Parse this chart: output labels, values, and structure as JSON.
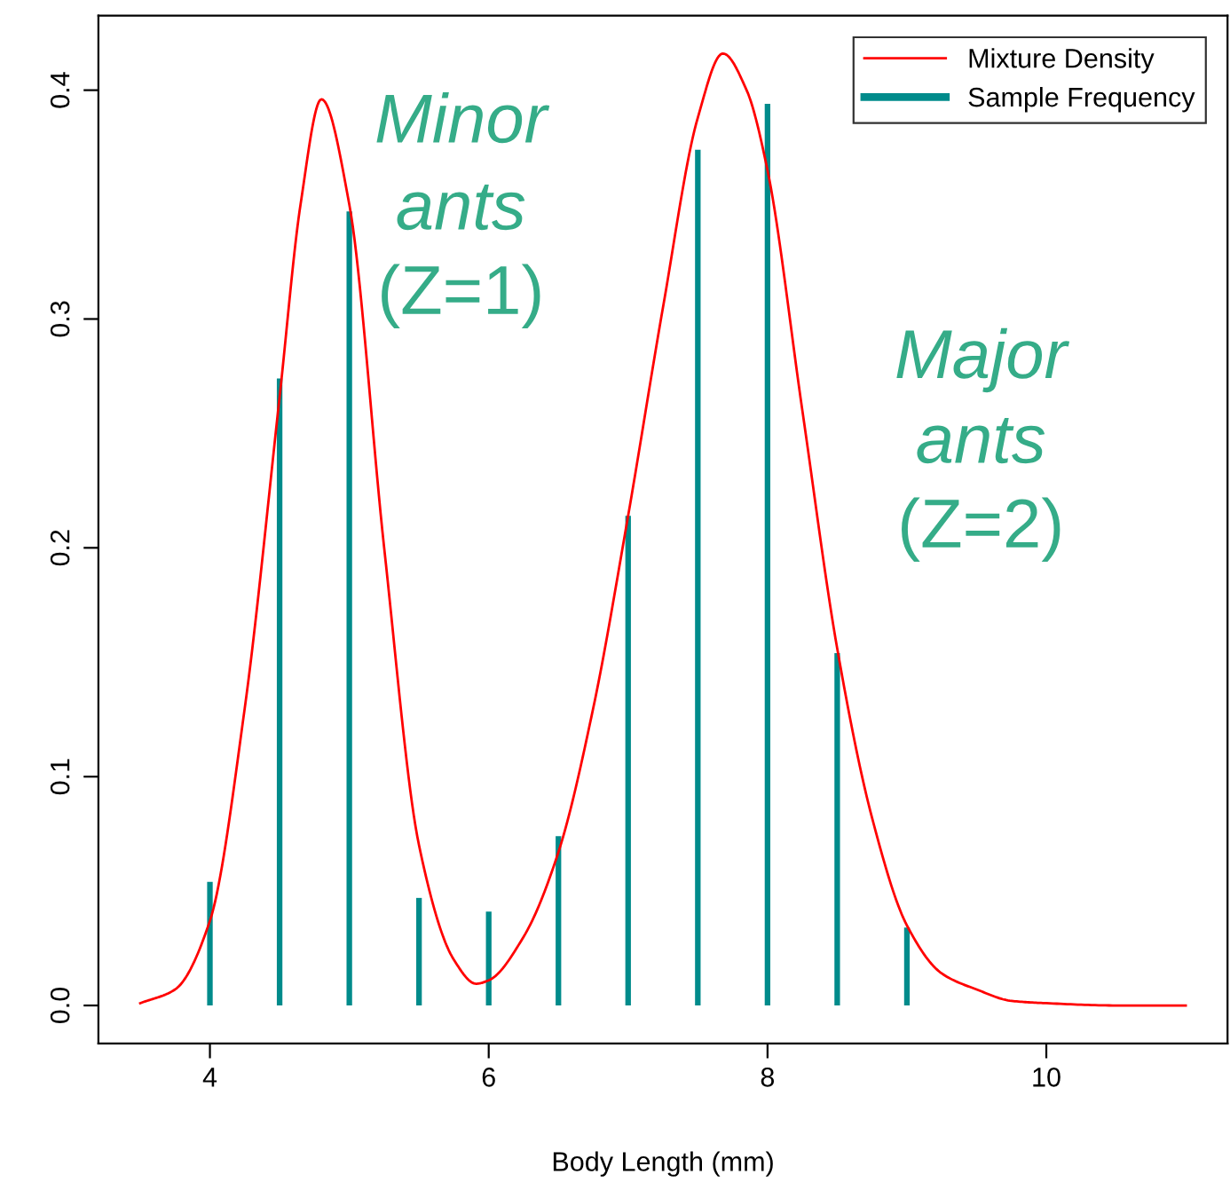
{
  "chart_data": {
    "type": "line",
    "xlabel": "Body Length (mm)",
    "annotations": [
      "Minor\nants\n(Z=1)",
      "Major\nants\n(Z=2)"
    ],
    "series": [
      {
        "name": "Mixture Density",
        "color": "#ff0000",
        "x": [
          3.5,
          3.75,
          4,
          4.25,
          4.5,
          4.65,
          4.8,
          5.0,
          5.25,
          5.5,
          5.75,
          5.91,
          6.0,
          6.25,
          6.5,
          6.75,
          7,
          7.25,
          7.5,
          7.68,
          7.85,
          8,
          8.25,
          8.5,
          8.75,
          9,
          9.25,
          9.5,
          9.75,
          10,
          10.5,
          11
        ],
        "values": [
          0.001,
          0.007,
          0.037,
          0.13,
          0.266,
          0.35,
          0.396,
          0.35,
          0.2,
          0.07,
          0.02,
          0.0095,
          0.011,
          0.03,
          0.067,
          0.13,
          0.214,
          0.305,
          0.388,
          0.416,
          0.4,
          0.365,
          0.26,
          0.156,
          0.082,
          0.035,
          0.014,
          0.007,
          0.002,
          0.001,
          0,
          0
        ]
      },
      {
        "name": "Sample Frequency",
        "type": "bar",
        "color": "#008b8b",
        "x": [
          4,
          4.5,
          5,
          5.5,
          6,
          6.5,
          7,
          7.5,
          8,
          8.5,
          9
        ],
        "values": [
          0.054,
          0.274,
          0.347,
          0.047,
          0.041,
          0.074,
          0.214,
          0.374,
          0.394,
          0.154,
          0.034
        ]
      }
    ],
    "xlim": [
      3.2,
      11.3
    ],
    "xticks": [
      4,
      6,
      8,
      10
    ],
    "ylim": [
      -0.0166,
      0.4326
    ],
    "yticks": [
      {
        "value": 0,
        "label": "0.0"
      },
      {
        "value": 0.1,
        "label": "0.1"
      },
      {
        "value": 0.2,
        "label": "0.2"
      },
      {
        "value": 0.3,
        "label": "0.3"
      },
      {
        "value": 0.4,
        "label": "0.4"
      }
    ],
    "grid": false,
    "legend": "top right",
    "marker": "none"
  }
}
